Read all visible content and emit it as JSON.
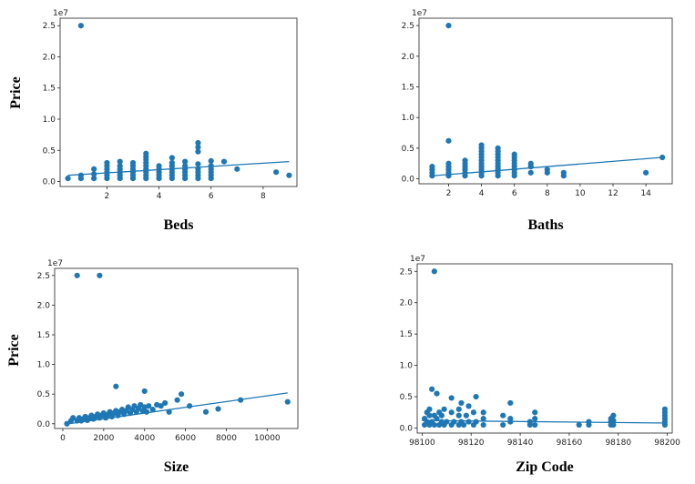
{
  "chart_data": [
    {
      "type": "scatter",
      "xlabel": "Beds",
      "ylabel": "Price",
      "y_offset_label": "1e7",
      "xlim": [
        0.2,
        9.3
      ],
      "ylim": [
        -0.08,
        2.62
      ],
      "xticks": [
        2,
        4,
        6,
        8
      ],
      "yticks": [
        0.0,
        0.5,
        1.0,
        1.5,
        2.0,
        2.5
      ],
      "ytick_labels": [
        "0.0",
        "0.5",
        "1.0",
        "1.5",
        "2.0",
        "2.5"
      ],
      "trend": [
        [
          0.5,
          0.1
        ],
        [
          9,
          0.32
        ]
      ],
      "points": [
        [
          0.5,
          0.05
        ],
        [
          1,
          0.05
        ],
        [
          1,
          0.1
        ],
        [
          1,
          2.5
        ],
        [
          1.5,
          0.05
        ],
        [
          1.5,
          0.12
        ],
        [
          1.5,
          0.2
        ],
        [
          2,
          0.05
        ],
        [
          2,
          0.1
        ],
        [
          2,
          0.15
        ],
        [
          2,
          0.2
        ],
        [
          2,
          0.25
        ],
        [
          2,
          0.3
        ],
        [
          2.5,
          0.05
        ],
        [
          2.5,
          0.1
        ],
        [
          2.5,
          0.15
        ],
        [
          2.5,
          0.2
        ],
        [
          2.5,
          0.25
        ],
        [
          2.5,
          0.32
        ],
        [
          3,
          0.05
        ],
        [
          3,
          0.1
        ],
        [
          3,
          0.15
        ],
        [
          3,
          0.2
        ],
        [
          3,
          0.25
        ],
        [
          3,
          0.3
        ],
        [
          3.5,
          0.05
        ],
        [
          3.5,
          0.1
        ],
        [
          3.5,
          0.15
        ],
        [
          3.5,
          0.2
        ],
        [
          3.5,
          0.25
        ],
        [
          3.5,
          0.3
        ],
        [
          3.5,
          0.35
        ],
        [
          3.5,
          0.4
        ],
        [
          3.5,
          0.45
        ],
        [
          4,
          0.05
        ],
        [
          4,
          0.1
        ],
        [
          4,
          0.15
        ],
        [
          4,
          0.2
        ],
        [
          4,
          0.25
        ],
        [
          4.5,
          0.05
        ],
        [
          4.5,
          0.1
        ],
        [
          4.5,
          0.15
        ],
        [
          4.5,
          0.2
        ],
        [
          4.5,
          0.25
        ],
        [
          4.5,
          0.3
        ],
        [
          4.5,
          0.38
        ],
        [
          5,
          0.05
        ],
        [
          5,
          0.1
        ],
        [
          5,
          0.15
        ],
        [
          5,
          0.2
        ],
        [
          5,
          0.25
        ],
        [
          5,
          0.32
        ],
        [
          5.5,
          0.05
        ],
        [
          5.5,
          0.1
        ],
        [
          5.5,
          0.15
        ],
        [
          5.5,
          0.2
        ],
        [
          5.5,
          0.28
        ],
        [
          5.5,
          0.48
        ],
        [
          5.5,
          0.55
        ],
        [
          5.5,
          0.62
        ],
        [
          6,
          0.05
        ],
        [
          6,
          0.1
        ],
        [
          6,
          0.15
        ],
        [
          6,
          0.2
        ],
        [
          6,
          0.25
        ],
        [
          6,
          0.33
        ],
        [
          6.5,
          0.32
        ],
        [
          7,
          0.2
        ],
        [
          8.5,
          0.15
        ],
        [
          9,
          0.1
        ]
      ]
    },
    {
      "type": "scatter",
      "xlabel": "Baths",
      "ylabel": "",
      "y_offset_label": "1e7",
      "xlim": [
        0.2,
        15.6
      ],
      "ylim": [
        -0.08,
        2.62
      ],
      "xticks": [
        2,
        4,
        6,
        8,
        10,
        12,
        14
      ],
      "yticks": [
        0.0,
        0.5,
        1.0,
        1.5,
        2.0,
        2.5
      ],
      "ytick_labels": [
        "0.0",
        "0.5",
        "1.0",
        "1.5",
        "2.0",
        "2.5"
      ],
      "trend": [
        [
          1,
          0.05
        ],
        [
          15,
          0.35
        ]
      ],
      "points": [
        [
          1,
          0.05
        ],
        [
          1,
          0.1
        ],
        [
          1,
          0.15
        ],
        [
          1,
          0.2
        ],
        [
          2,
          0.05
        ],
        [
          2,
          0.1
        ],
        [
          2,
          0.15
        ],
        [
          2,
          0.2
        ],
        [
          2,
          0.25
        ],
        [
          2,
          0.62
        ],
        [
          2,
          2.5
        ],
        [
          3,
          0.05
        ],
        [
          3,
          0.1
        ],
        [
          3,
          0.15
        ],
        [
          3,
          0.2
        ],
        [
          3,
          0.25
        ],
        [
          3,
          0.3
        ],
        [
          4,
          0.05
        ],
        [
          4,
          0.1
        ],
        [
          4,
          0.15
        ],
        [
          4,
          0.2
        ],
        [
          4,
          0.25
        ],
        [
          4,
          0.3
        ],
        [
          4,
          0.35
        ],
        [
          4,
          0.4
        ],
        [
          4,
          0.45
        ],
        [
          4,
          0.5
        ],
        [
          4,
          0.55
        ],
        [
          5,
          0.05
        ],
        [
          5,
          0.1
        ],
        [
          5,
          0.15
        ],
        [
          5,
          0.2
        ],
        [
          5,
          0.25
        ],
        [
          5,
          0.3
        ],
        [
          5,
          0.35
        ],
        [
          5,
          0.4
        ],
        [
          5,
          0.45
        ],
        [
          5,
          0.5
        ],
        [
          6,
          0.05
        ],
        [
          6,
          0.1
        ],
        [
          6,
          0.15
        ],
        [
          6,
          0.2
        ],
        [
          6,
          0.25
        ],
        [
          6,
          0.3
        ],
        [
          6,
          0.35
        ],
        [
          6,
          0.4
        ],
        [
          7,
          0.1
        ],
        [
          7,
          0.2
        ],
        [
          7,
          0.25
        ],
        [
          8,
          0.1
        ],
        [
          8,
          0.15
        ],
        [
          9,
          0.05
        ],
        [
          9,
          0.1
        ],
        [
          14,
          0.1
        ],
        [
          15,
          0.35
        ]
      ]
    },
    {
      "type": "scatter",
      "xlabel": "Size",
      "ylabel": "Price",
      "y_offset_label": "1e7",
      "xlim": [
        -400,
        11500
      ],
      "ylim": [
        -0.08,
        2.62
      ],
      "xticks": [
        0,
        2000,
        4000,
        6000,
        8000,
        10000
      ],
      "yticks": [
        0.0,
        0.5,
        1.0,
        1.5,
        2.0,
        2.5
      ],
      "ytick_labels": [
        "0.0",
        "0.5",
        "1.0",
        "1.5",
        "2.0",
        "2.5"
      ],
      "trend": [
        [
          300,
          0.0
        ],
        [
          11000,
          0.52
        ]
      ],
      "points": [
        [
          200,
          0.0
        ],
        [
          400,
          0.05
        ],
        [
          500,
          0.1
        ],
        [
          700,
          0.05
        ],
        [
          700,
          2.5
        ],
        [
          800,
          0.1
        ],
        [
          900,
          0.05
        ],
        [
          1000,
          0.08
        ],
        [
          1100,
          0.12
        ],
        [
          1200,
          0.06
        ],
        [
          1300,
          0.1
        ],
        [
          1400,
          0.14
        ],
        [
          1500,
          0.08
        ],
        [
          1600,
          0.12
        ],
        [
          1700,
          0.16
        ],
        [
          1800,
          0.1
        ],
        [
          1800,
          2.5
        ],
        [
          1900,
          0.14
        ],
        [
          2000,
          0.18
        ],
        [
          2100,
          0.1
        ],
        [
          2200,
          0.15
        ],
        [
          2300,
          0.2
        ],
        [
          2400,
          0.12
        ],
        [
          2500,
          0.18
        ],
        [
          2600,
          0.22
        ],
        [
          2600,
          0.63
        ],
        [
          2700,
          0.14
        ],
        [
          2800,
          0.2
        ],
        [
          2900,
          0.24
        ],
        [
          3000,
          0.16
        ],
        [
          3100,
          0.22
        ],
        [
          3200,
          0.28
        ],
        [
          3300,
          0.18
        ],
        [
          3400,
          0.24
        ],
        [
          3500,
          0.3
        ],
        [
          3600,
          0.2
        ],
        [
          3700,
          0.26
        ],
        [
          3800,
          0.32
        ],
        [
          3900,
          0.22
        ],
        [
          4000,
          0.28
        ],
        [
          4000,
          0.55
        ],
        [
          4100,
          0.2
        ],
        [
          4200,
          0.3
        ],
        [
          4400,
          0.24
        ],
        [
          4600,
          0.32
        ],
        [
          4800,
          0.3
        ],
        [
          5000,
          0.35
        ],
        [
          5200,
          0.2
        ],
        [
          5600,
          0.4
        ],
        [
          5800,
          0.5
        ],
        [
          6200,
          0.3
        ],
        [
          7000,
          0.2
        ],
        [
          7600,
          0.25
        ],
        [
          8700,
          0.4
        ],
        [
          11000,
          0.37
        ]
      ]
    },
    {
      "type": "scatter",
      "xlabel": "Zip Code",
      "ylabel": "",
      "y_offset_label": "1e7",
      "xlim": [
        98098,
        98202
      ],
      "ylim": [
        -0.08,
        2.62
      ],
      "xticks": [
        98100,
        98120,
        98140,
        98160,
        98180,
        98200
      ],
      "yticks": [
        0.0,
        0.5,
        1.0,
        1.5,
        2.0,
        2.5
      ],
      "ytick_labels": [
        "0.0",
        "0.5",
        "1.0",
        "1.5",
        "2.0",
        "2.5"
      ],
      "trend": [
        [
          98100,
          0.12
        ],
        [
          98200,
          0.08
        ]
      ],
      "points": [
        [
          98101,
          0.05
        ],
        [
          98101,
          0.15
        ],
        [
          98102,
          0.1
        ],
        [
          98102,
          0.25
        ],
        [
          98103,
          0.05
        ],
        [
          98103,
          0.2
        ],
        [
          98103,
          0.3
        ],
        [
          98104,
          0.62
        ],
        [
          98104,
          0.1
        ],
        [
          98105,
          0.05
        ],
        [
          98105,
          0.2
        ],
        [
          98105,
          2.5
        ],
        [
          98106,
          0.15
        ],
        [
          98106,
          0.55
        ],
        [
          98107,
          0.05
        ],
        [
          98107,
          0.25
        ],
        [
          98108,
          0.1
        ],
        [
          98108,
          0.2
        ],
        [
          98109,
          0.05
        ],
        [
          98109,
          0.3
        ],
        [
          98110,
          0.1
        ],
        [
          98112,
          0.05
        ],
        [
          98112,
          0.25
        ],
        [
          98112,
          0.48
        ],
        [
          98113,
          0.1
        ],
        [
          98115,
          0.05
        ],
        [
          98115,
          0.2
        ],
        [
          98115,
          0.3
        ],
        [
          98116,
          0.1
        ],
        [
          98116,
          0.4
        ],
        [
          98117,
          0.05
        ],
        [
          98118,
          0.2
        ],
        [
          98119,
          0.1
        ],
        [
          98119,
          0.35
        ],
        [
          98121,
          0.05
        ],
        [
          98121,
          0.25
        ],
        [
          98122,
          0.1
        ],
        [
          98122,
          0.5
        ],
        [
          98125,
          0.05
        ],
        [
          98125,
          0.15
        ],
        [
          98125,
          0.25
        ],
        [
          98133,
          0.05
        ],
        [
          98133,
          0.2
        ],
        [
          98136,
          0.1
        ],
        [
          98136,
          0.15
        ],
        [
          98136,
          0.4
        ],
        [
          98144,
          0.05
        ],
        [
          98144,
          0.1
        ],
        [
          98146,
          0.05
        ],
        [
          98146,
          0.15
        ],
        [
          98146,
          0.25
        ],
        [
          98164,
          0.05
        ],
        [
          98168,
          0.05
        ],
        [
          98168,
          0.1
        ],
        [
          98177,
          0.05
        ],
        [
          98177,
          0.1
        ],
        [
          98177,
          0.15
        ],
        [
          98178,
          0.05
        ],
        [
          98178,
          0.12
        ],
        [
          98178,
          0.2
        ],
        [
          98199,
          0.05
        ],
        [
          98199,
          0.1
        ],
        [
          98199,
          0.15
        ],
        [
          98199,
          0.2
        ],
        [
          98199,
          0.25
        ],
        [
          98199,
          0.3
        ]
      ]
    }
  ],
  "colors": {
    "point": "#1f77b4",
    "line": "#1f77b4",
    "axis": "#222222"
  }
}
